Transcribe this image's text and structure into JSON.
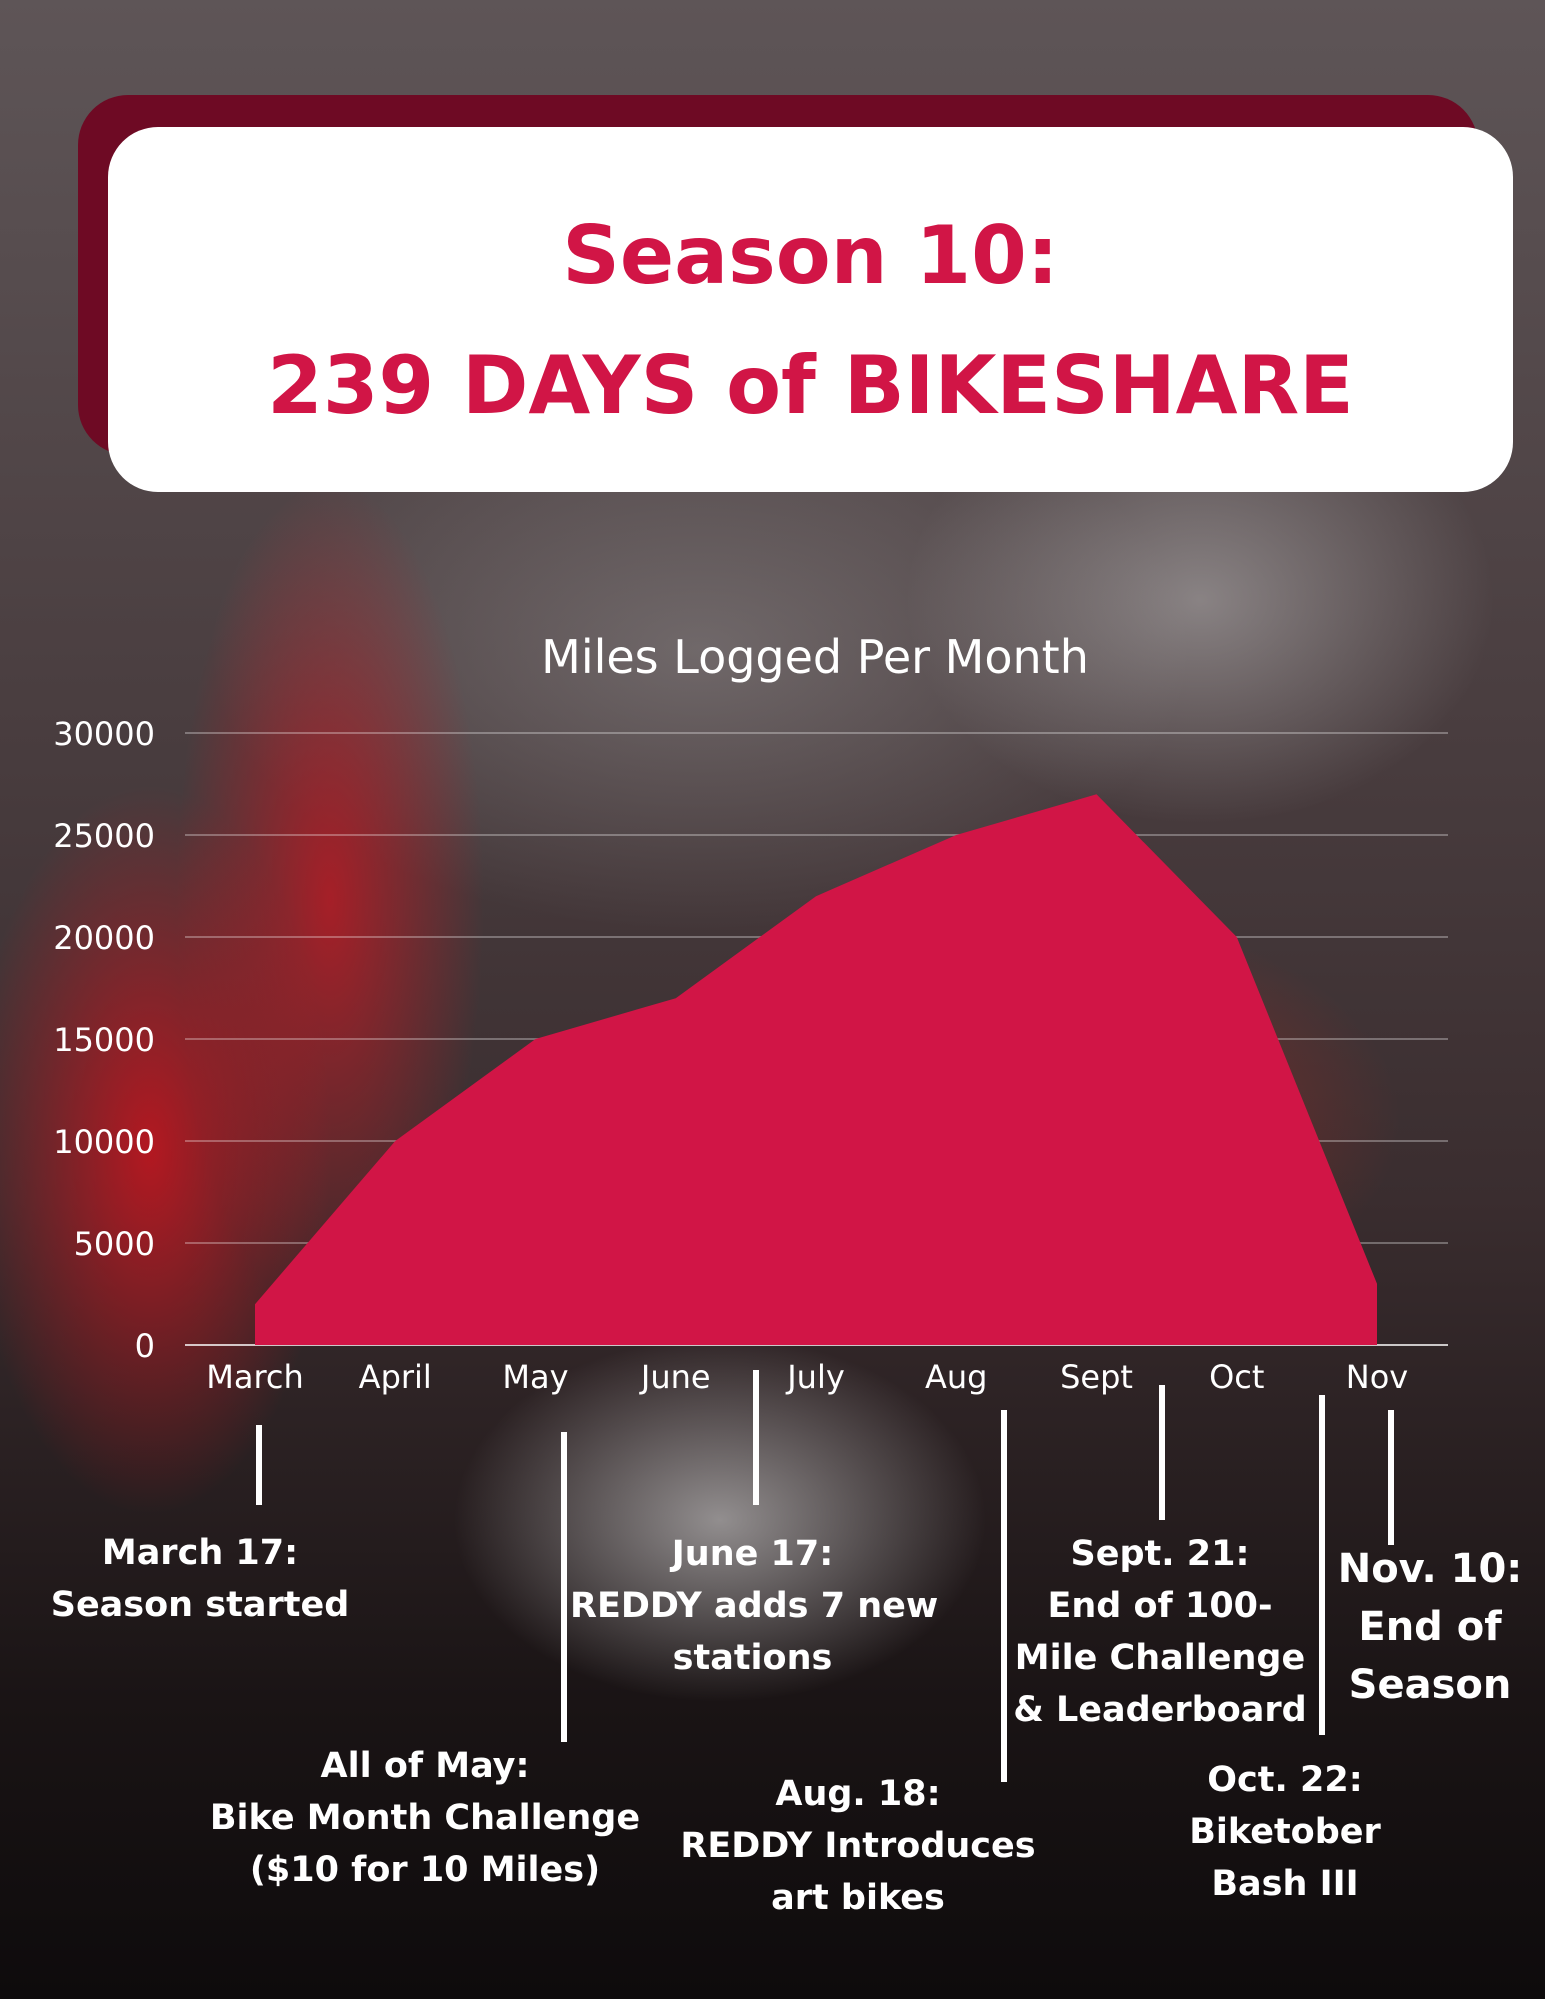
{
  "title": {
    "line1": "Season 10:",
    "line2": "239 DAYS of BIKESHARE"
  },
  "colors": {
    "accent": "#d11546",
    "title_shadow": "#6e0a24",
    "card": "#ffffff",
    "text_light": "#ffffff"
  },
  "chart_data": {
    "type": "area",
    "title": "Miles Logged Per Month",
    "categories": [
      "March",
      "April",
      "May",
      "June",
      "July",
      "Aug",
      "Sept",
      "Oct",
      "Nov"
    ],
    "values": [
      2000,
      10000,
      15000,
      17000,
      22000,
      25000,
      27000,
      20000,
      3000
    ],
    "y_ticks": [
      0,
      5000,
      10000,
      15000,
      20000,
      25000,
      30000
    ],
    "ylim": [
      0,
      30000
    ],
    "grid": true,
    "legend": "none",
    "color": "#d11546"
  },
  "annotations": [
    {
      "id": "march",
      "lines": [
        "March 17:",
        "Season started"
      ]
    },
    {
      "id": "may",
      "lines": [
        "All of May:",
        "Bike Month Challenge",
        "($10 for 10 Miles)"
      ]
    },
    {
      "id": "june",
      "lines": [
        "June 17:",
        "REDDY adds 7 new",
        "stations"
      ]
    },
    {
      "id": "aug",
      "lines": [
        "Aug. 18:",
        "REDDY Introduces",
        "art bikes"
      ]
    },
    {
      "id": "sept",
      "lines": [
        "Sept. 21:",
        "End of 100-",
        "Mile Challenge",
        "& Leaderboard"
      ]
    },
    {
      "id": "oct",
      "lines": [
        "Oct. 22:",
        "Biketober",
        "Bash III"
      ]
    },
    {
      "id": "nov",
      "lines": [
        "Nov. 10:",
        "End of",
        "Season"
      ]
    }
  ]
}
